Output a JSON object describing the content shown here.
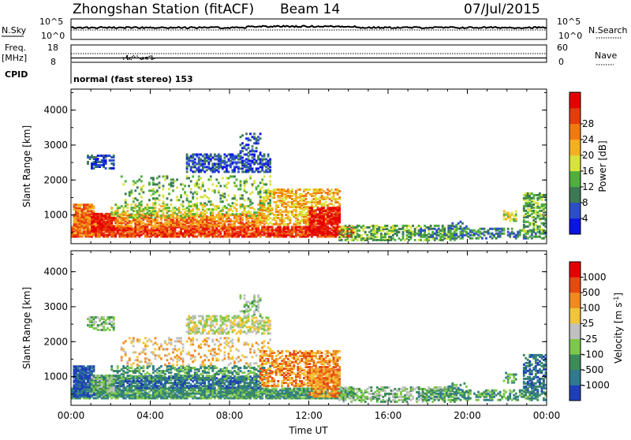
{
  "header": {
    "station": "Zhongshan Station (fitACF)",
    "beam": "Beam 14",
    "date": "07/Jul/2015"
  },
  "top_panels": {
    "nsky_label": "N.Sky",
    "nsky_ticks": [
      "10^5",
      "10^0"
    ],
    "nsearch_label": "N.Search",
    "nsearch_ticks": [
      "10^5",
      "10^0"
    ],
    "freq_label": "Freq.",
    "freq_unit": "[MHz]",
    "freq_ticks": [
      "18",
      "8"
    ],
    "nave_label": "Nave",
    "nave_ticks": [
      "60",
      "0"
    ],
    "cpid_label": "CPID",
    "cpid_text": "normal (fast stereo) 153"
  },
  "chart_data": [
    {
      "type": "heatmap",
      "name": "power-panel",
      "ylabel": "Slant Range [km]",
      "xlabel": "Time UT",
      "x_ticks": [
        "00:00",
        "04:00",
        "08:00",
        "12:00",
        "16:00",
        "20:00",
        "00:00"
      ],
      "xlim_hours": [
        0,
        24
      ],
      "y_ticks": [
        1000,
        2000,
        3000,
        4000
      ],
      "ylim": [
        180,
        4600
      ],
      "colorbar": {
        "label": "Power [dB]",
        "ticks": [
          "4",
          "8",
          "12",
          "16",
          "20",
          "24",
          "28"
        ],
        "colors": [
          "#0a14e6",
          "#2b4fc9",
          "#3c7a55",
          "#4fae3c",
          "#d8e33a",
          "#f5b022",
          "#f07a10",
          "#e63b0c",
          "#e60000"
        ]
      }
    },
    {
      "type": "heatmap",
      "name": "velocity-panel",
      "ylabel": "Slant Range [km]",
      "xlabel": "Time UT",
      "x_ticks": [
        "00:00",
        "04:00",
        "08:00",
        "12:00",
        "16:00",
        "20:00",
        "00:00"
      ],
      "xlim_hours": [
        0,
        24
      ],
      "y_ticks": [
        1000,
        2000,
        3000,
        4000
      ],
      "ylim": [
        180,
        4600
      ],
      "colorbar": {
        "label": "Velocity [m s^-1]",
        "ticks": [
          "1000",
          "500",
          "100",
          "25",
          "-25",
          "-100",
          "-500",
          "-1000"
        ],
        "colors": [
          "#1f3fb8",
          "#2f7a8f",
          "#3c8c5a",
          "#7dc84a",
          "#c0c0c0",
          "#f2c43a",
          "#f08a20",
          "#e64a10",
          "#e60000"
        ]
      }
    }
  ]
}
